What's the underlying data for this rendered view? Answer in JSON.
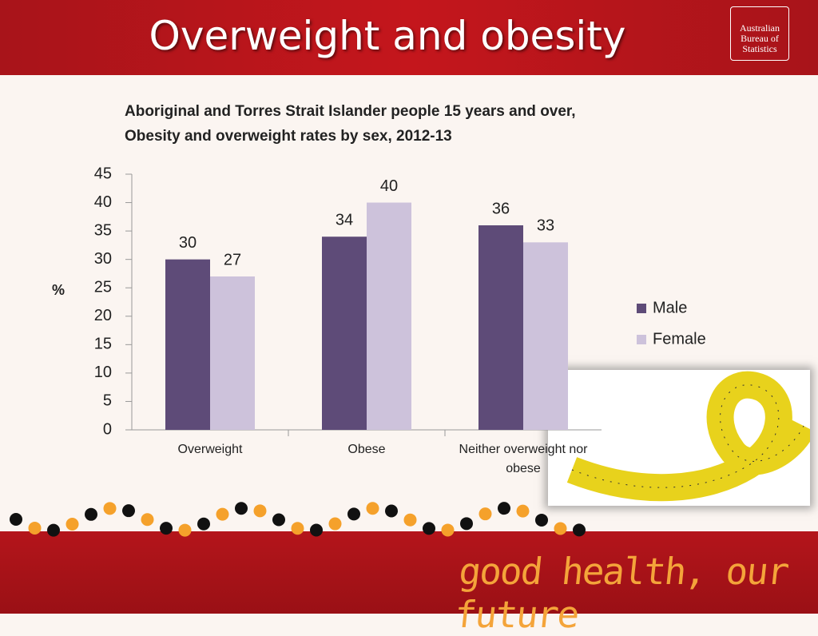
{
  "header": {
    "title": "Overweight and obesity",
    "logo_lines": [
      "Australian",
      "Bureau of",
      "Statistics"
    ]
  },
  "chart_data": {
    "type": "bar",
    "title": [
      "Aboriginal and Torres Strait Islander people 15 years and over,",
      "Obesity and overweight rates by sex, 2012-13"
    ],
    "y_label": "%",
    "categories": [
      "Overweight",
      "Obese",
      "Neither overweight nor obese"
    ],
    "series": [
      {
        "name": "Male",
        "color": "#5e4b78",
        "values": [
          30,
          34,
          36
        ]
      },
      {
        "name": "Female",
        "color": "#cdc2db",
        "values": [
          27,
          40,
          33
        ]
      }
    ],
    "ylim": [
      0,
      45
    ],
    "yticks": [
      0,
      5,
      10,
      15,
      20,
      25,
      30,
      35,
      40,
      45
    ],
    "grid": false,
    "legend": "right"
  },
  "footer": {
    "slogan": "good health, our future"
  }
}
